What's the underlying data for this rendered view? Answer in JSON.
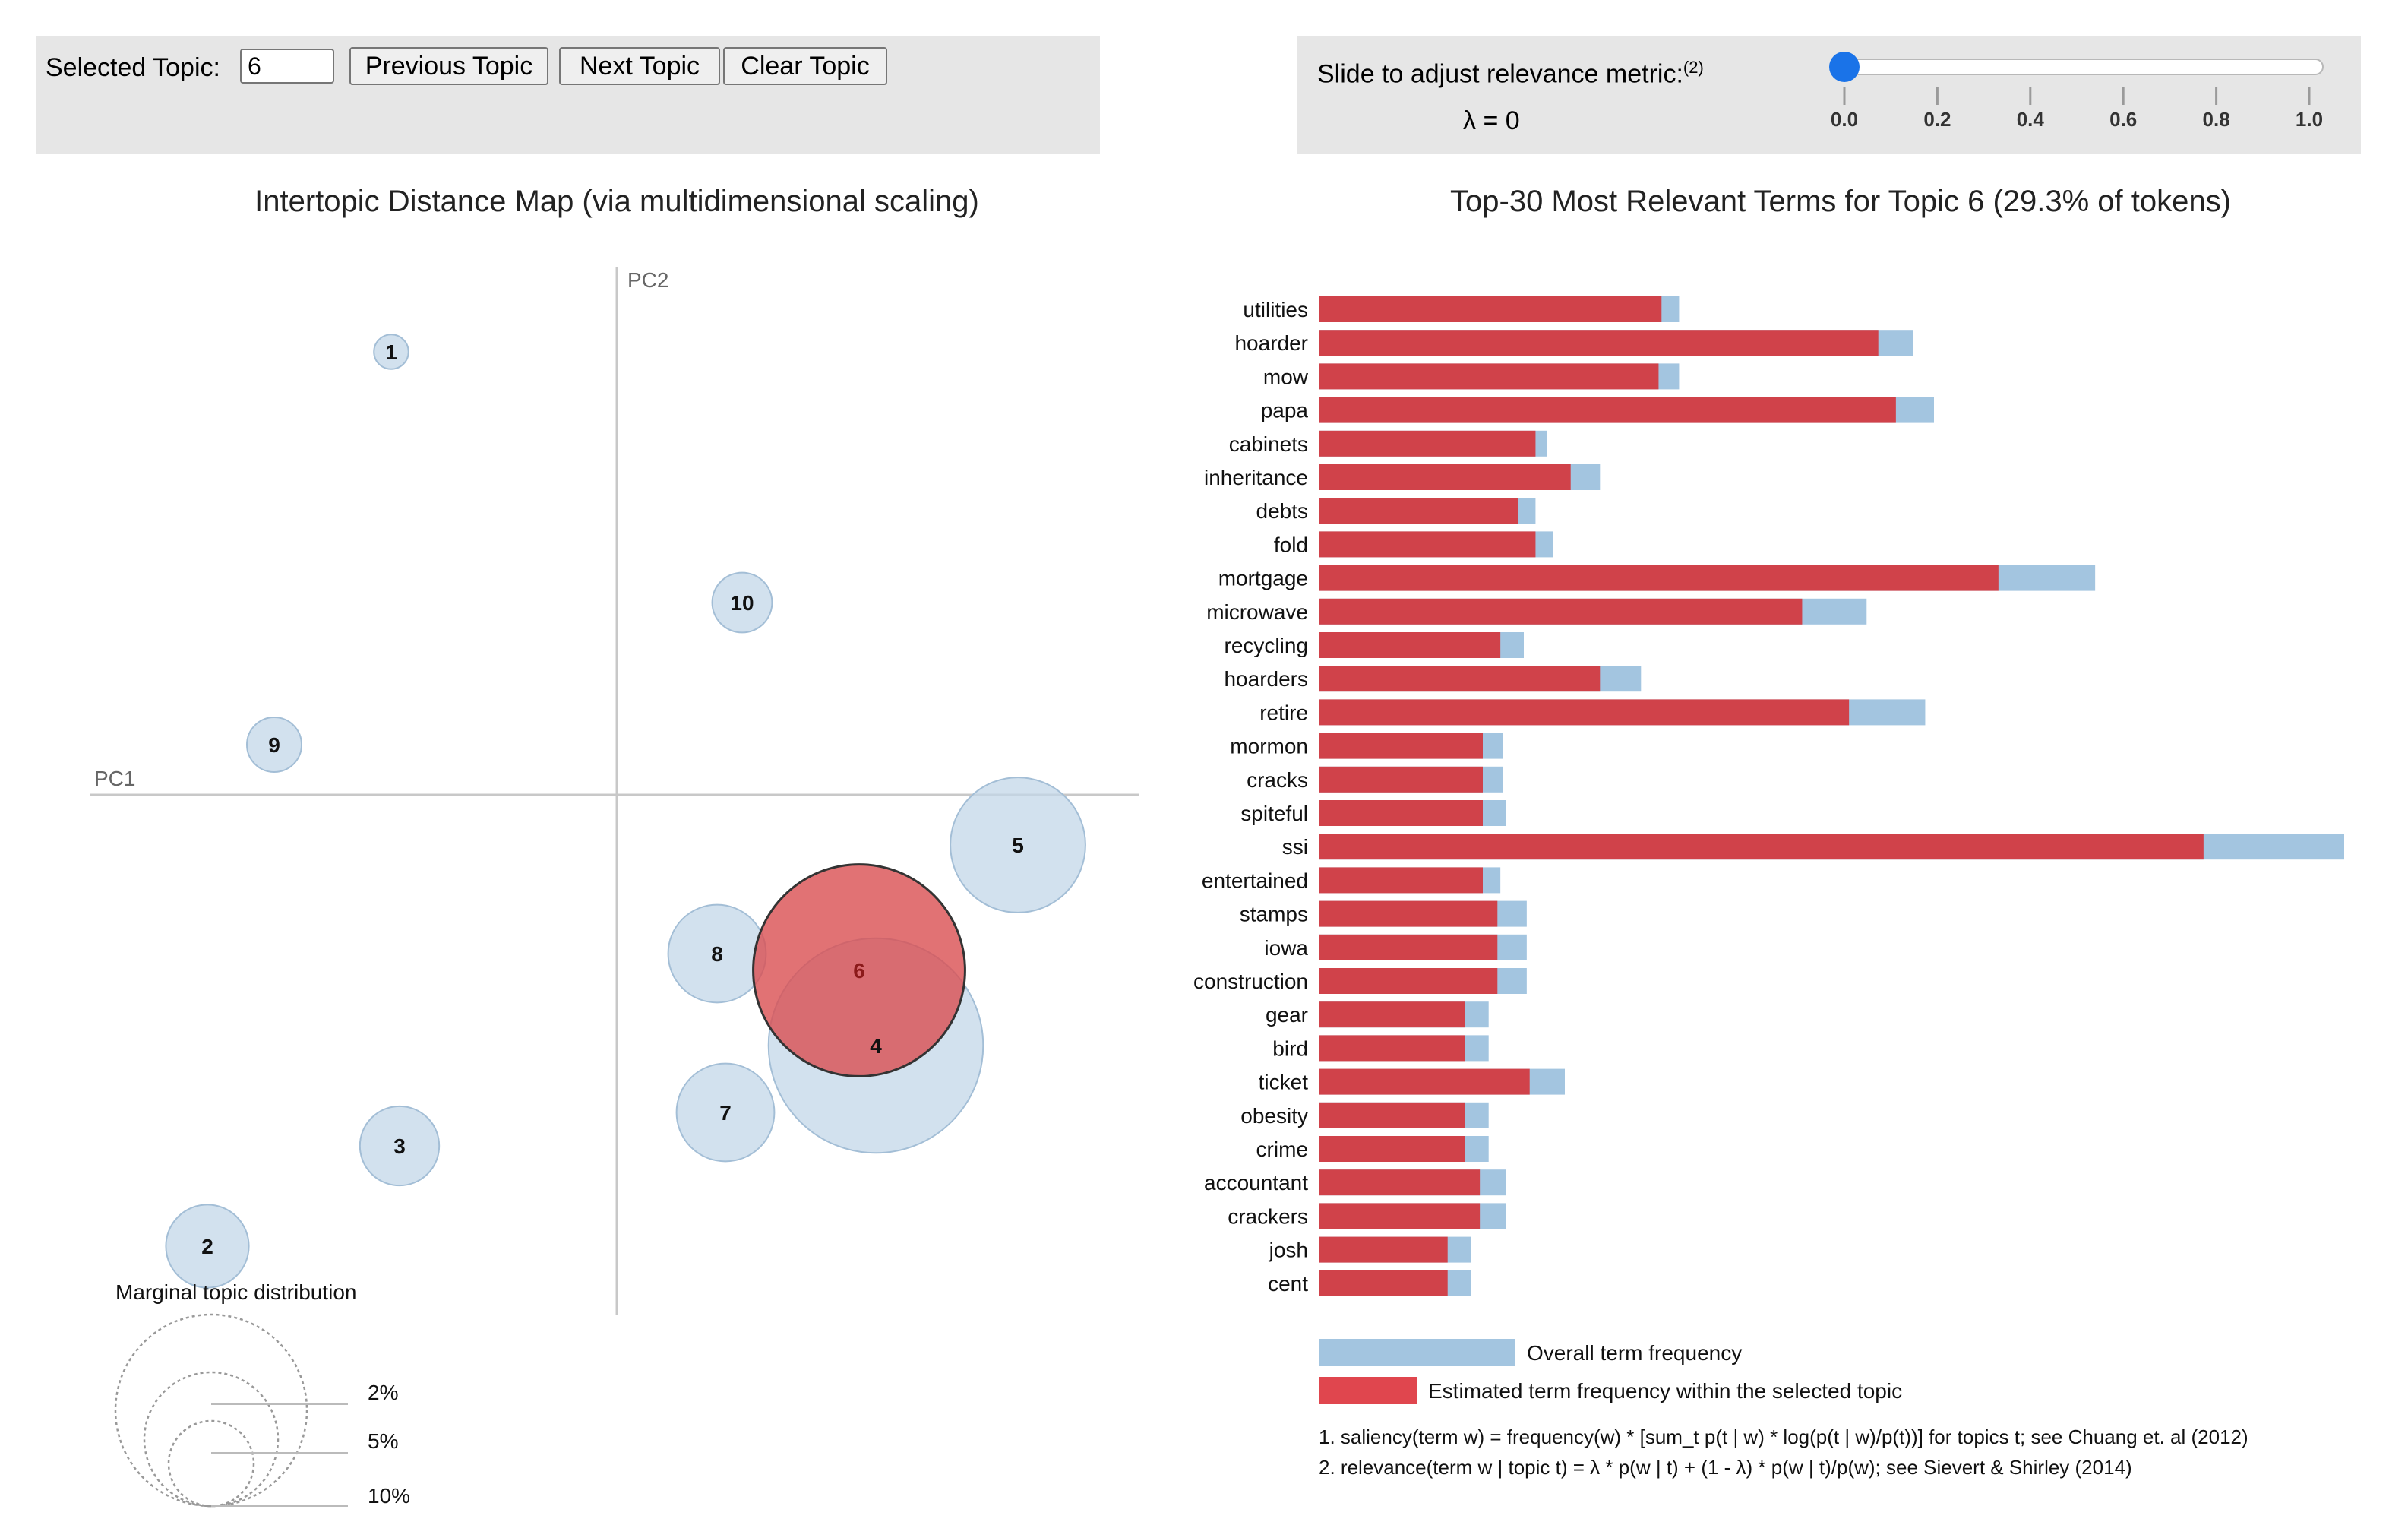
{
  "controls": {
    "selected_topic_label": "Selected Topic:",
    "selected_topic_value": "6",
    "prev_label": "Previous Topic",
    "next_label": "Next Topic",
    "clear_label": "Clear Topic",
    "slider_label": "Slide to adjust relevance metric:",
    "slider_footnote": "(2)",
    "lambda_text": "λ = 0",
    "lambda_value": 0,
    "slider_ticks": [
      "0.0",
      "0.2",
      "0.4",
      "0.6",
      "0.8",
      "1.0"
    ],
    "accent_color": "#1a73e8"
  },
  "chart_data": [
    {
      "type": "scatter",
      "title": "Intertopic Distance Map (via multidimensional scaling)",
      "xlabel": "PC1",
      "ylabel": "PC2",
      "selected_topic": 6,
      "topics": [
        {
          "id": "1",
          "x": -0.27,
          "y": 0.53,
          "size": 0.4
        },
        {
          "id": "2",
          "x": -0.49,
          "y": -0.54,
          "size": 2.3
        },
        {
          "id": "3",
          "x": -0.26,
          "y": -0.42,
          "size": 2.1
        },
        {
          "id": "4",
          "x": 0.31,
          "y": -0.3,
          "size": 15.4
        },
        {
          "id": "5",
          "x": 0.48,
          "y": -0.06,
          "size": 6.1
        },
        {
          "id": "6",
          "x": 0.29,
          "y": -0.21,
          "size": 15.0
        },
        {
          "id": "7",
          "x": 0.13,
          "y": -0.38,
          "size": 3.2
        },
        {
          "id": "8",
          "x": 0.12,
          "y": -0.19,
          "size": 3.2
        },
        {
          "id": "9",
          "x": -0.41,
          "y": 0.06,
          "size": 1.0
        },
        {
          "id": "10",
          "x": 0.15,
          "y": 0.23,
          "size": 1.2
        }
      ],
      "xlim": [
        -0.55,
        0.55
      ],
      "ylim": [
        -0.55,
        0.55
      ],
      "marginal_legend": {
        "title": "Marginal topic distribution",
        "labels": [
          "2%",
          "5%",
          "10%"
        ]
      },
      "colors": {
        "topic": "#c3d7e8",
        "topic_stroke": "#a3bed6",
        "selected": "#d94f51",
        "axis": "#c8c8c8"
      }
    },
    {
      "type": "bar",
      "orientation": "horizontal",
      "title": "Top-30 Most Relevant Terms for Topic 6 (29.3% of tokens)",
      "categories": [
        "utilities",
        "hoarder",
        "mow",
        "papa",
        "cabinets",
        "inheritance",
        "debts",
        "fold",
        "mortgage",
        "microwave",
        "recycling",
        "hoarders",
        "retire",
        "mormon",
        "cracks",
        "spiteful",
        "ssi",
        "entertained",
        "stamps",
        "iowa",
        "construction",
        "gear",
        "bird",
        "ticket",
        "obesity",
        "crime",
        "accountant",
        "crackers",
        "josh",
        "cent"
      ],
      "series": [
        {
          "name": "Overall term frequency",
          "values": [
            123,
            203,
            123,
            210,
            78,
            96,
            74,
            80,
            265,
            187,
            70,
            110,
            207,
            63,
            63,
            64,
            350,
            62,
            71,
            71,
            71,
            58,
            58,
            84,
            58,
            58,
            64,
            64,
            52,
            52
          ]
        },
        {
          "name": "Estimated term frequency within the selected topic",
          "values": [
            117,
            191,
            116,
            197,
            74,
            86,
            68,
            74,
            232,
            165,
            62,
            96,
            181,
            56,
            56,
            56,
            302,
            56,
            61,
            61,
            61,
            50,
            50,
            72,
            50,
            50,
            55,
            55,
            44,
            44
          ]
        }
      ],
      "xlim": [
        0,
        350
      ],
      "legend": [
        "Overall term frequency",
        "Estimated term frequency within the selected topic"
      ],
      "footnotes": [
        "1. saliency(term w) = frequency(w) * [sum_t p(t | w) * log(p(t | w)/p(t))] for topics t; see Chuang et. al (2012)",
        "2. relevance(term w | topic t) = λ * p(w | t) + (1 - λ) * p(w | t)/p(w); see Sievert & Shirley (2014)"
      ],
      "colors": {
        "overall": "#a3c5e0",
        "estimated": "#d0424a",
        "legend_estimated": "#e0464e"
      }
    }
  ]
}
